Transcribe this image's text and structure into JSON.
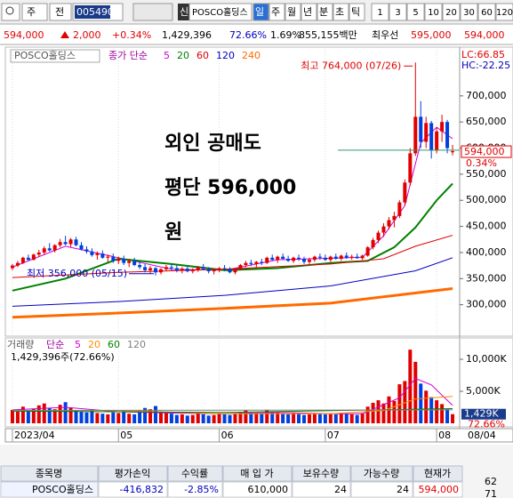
{
  "toolbar": {
    "market": "주",
    "mode": "전",
    "code": "005490",
    "flag": "신",
    "name": "POSCO홀딩스",
    "periods": [
      "일",
      "주",
      "월",
      "년",
      "분",
      "초",
      "틱"
    ],
    "intervals": [
      "1",
      "3",
      "5",
      "10",
      "20",
      "30",
      "60",
      "120"
    ]
  },
  "quote": {
    "price": "594,000",
    "change": "2,000",
    "change_pct": "+0.34%",
    "volume": "1,429,396",
    "volume_ratio": "72.66%",
    "turnover": "1.69%",
    "amount": "855,155백만",
    "best_label": "최우선",
    "ask": "595,000",
    "bid": "594,000"
  },
  "chart_data": {
    "type": "candlestick",
    "legend_name": "POSCO홀딩스",
    "legend_label": "종가 단순",
    "xlim": [
      -1,
      84
    ],
    "xticks": [
      {
        "value": 0,
        "label": "2023/04"
      },
      {
        "value": 20,
        "label": "05"
      },
      {
        "value": 39,
        "label": "06"
      },
      {
        "value": 59,
        "label": "07"
      },
      {
        "value": 80,
        "label": "08"
      }
    ],
    "last_date": "08/04",
    "ylim": [
      250000,
      790000
    ],
    "yticks": [
      {
        "value": 300000,
        "label": "300,000"
      },
      {
        "value": 350000,
        "label": "350,000"
      },
      {
        "value": 400000,
        "label": "400,000"
      },
      {
        "value": 450000,
        "label": "450,000"
      },
      {
        "value": 500000,
        "label": "500,000"
      },
      {
        "value": 550000,
        "label": "550,000"
      },
      {
        "value": 600000,
        "label": "600,000"
      },
      {
        "value": 650000,
        "label": "650,000"
      },
      {
        "value": 700000,
        "label": "700,000"
      }
    ],
    "up_color": "#e00000",
    "down_color": "#0040e0",
    "ohlc": [
      [
        370000,
        378000,
        366000,
        375000
      ],
      [
        375000,
        384000,
        372000,
        380000
      ],
      [
        380000,
        392000,
        378000,
        390000
      ],
      [
        390000,
        396000,
        384000,
        386000
      ],
      [
        386000,
        398000,
        385000,
        396000
      ],
      [
        396000,
        405000,
        392000,
        400000
      ],
      [
        400000,
        412000,
        396000,
        408000
      ],
      [
        408000,
        418000,
        402000,
        404000
      ],
      [
        404000,
        416000,
        400000,
        414000
      ],
      [
        414000,
        426000,
        410000,
        420000
      ],
      [
        420000,
        432000,
        414000,
        416000
      ],
      [
        416000,
        428000,
        410000,
        425000
      ],
      [
        425000,
        430000,
        412000,
        414000
      ],
      [
        414000,
        420000,
        404000,
        406000
      ],
      [
        406000,
        412000,
        398000,
        402000
      ],
      [
        402000,
        408000,
        392000,
        395000
      ],
      [
        395000,
        402000,
        386000,
        398000
      ],
      [
        398000,
        404000,
        388000,
        390000
      ],
      [
        390000,
        396000,
        382000,
        392000
      ],
      [
        392000,
        398000,
        380000,
        384000
      ],
      [
        384000,
        392000,
        378000,
        388000
      ],
      [
        388000,
        394000,
        376000,
        380000
      ],
      [
        380000,
        388000,
        372000,
        384000
      ],
      [
        384000,
        390000,
        374000,
        376000
      ],
      [
        376000,
        384000,
        368000,
        372000
      ],
      [
        372000,
        378000,
        362000,
        366000
      ],
      [
        366000,
        374000,
        360000,
        370000
      ],
      [
        370000,
        372000,
        356000,
        362000
      ],
      [
        362000,
        370000,
        358000,
        368000
      ],
      [
        368000,
        376000,
        364000,
        372000
      ],
      [
        372000,
        378000,
        366000,
        370000
      ],
      [
        370000,
        376000,
        362000,
        366000
      ],
      [
        366000,
        372000,
        360000,
        369000
      ],
      [
        369000,
        374000,
        362000,
        364000
      ],
      [
        364000,
        370000,
        360000,
        367000
      ],
      [
        367000,
        374000,
        363000,
        372000
      ],
      [
        372000,
        378000,
        366000,
        368000
      ],
      [
        368000,
        372000,
        360000,
        364000
      ],
      [
        364000,
        370000,
        358000,
        366000
      ],
      [
        366000,
        372000,
        362000,
        370000
      ],
      [
        370000,
        376000,
        364000,
        368000
      ],
      [
        368000,
        372000,
        360000,
        362000
      ],
      [
        362000,
        370000,
        358000,
        368000
      ],
      [
        368000,
        378000,
        366000,
        376000
      ],
      [
        376000,
        384000,
        372000,
        380000
      ],
      [
        380000,
        386000,
        374000,
        378000
      ],
      [
        378000,
        384000,
        372000,
        382000
      ],
      [
        382000,
        388000,
        376000,
        380000
      ],
      [
        380000,
        392000,
        378000,
        390000
      ],
      [
        390000,
        396000,
        384000,
        386000
      ],
      [
        386000,
        394000,
        380000,
        392000
      ],
      [
        392000,
        398000,
        386000,
        388000
      ],
      [
        388000,
        394000,
        382000,
        384000
      ],
      [
        384000,
        392000,
        380000,
        390000
      ],
      [
        390000,
        396000,
        384000,
        388000
      ],
      [
        388000,
        392000,
        378000,
        382000
      ],
      [
        382000,
        390000,
        378000,
        386000
      ],
      [
        386000,
        394000,
        382000,
        392000
      ],
      [
        392000,
        398000,
        386000,
        390000
      ],
      [
        390000,
        396000,
        384000,
        386000
      ],
      [
        386000,
        394000,
        382000,
        392000
      ],
      [
        392000,
        398000,
        386000,
        388000
      ],
      [
        388000,
        396000,
        384000,
        394000
      ],
      [
        394000,
        400000,
        388000,
        390000
      ],
      [
        390000,
        396000,
        386000,
        392000
      ],
      [
        392000,
        398000,
        388000,
        389000
      ],
      [
        389000,
        396000,
        386000,
        394000
      ],
      [
        394000,
        412000,
        392000,
        410000
      ],
      [
        410000,
        428000,
        406000,
        424000
      ],
      [
        424000,
        442000,
        418000,
        438000
      ],
      [
        438000,
        456000,
        430000,
        450000
      ],
      [
        450000,
        468000,
        444000,
        462000
      ],
      [
        462000,
        478000,
        448000,
        470000
      ],
      [
        470000,
        500000,
        466000,
        496000
      ],
      [
        496000,
        540000,
        490000,
        534000
      ],
      [
        534000,
        600000,
        528000,
        590000
      ],
      [
        590000,
        764000,
        585000,
        660000
      ],
      [
        660000,
        690000,
        600000,
        612000
      ],
      [
        612000,
        660000,
        600000,
        648000
      ],
      [
        648000,
        652000,
        580000,
        596000
      ],
      [
        596000,
        640000,
        590000,
        632000
      ],
      [
        632000,
        664000,
        612000,
        650000
      ],
      [
        650000,
        654000,
        590000,
        600000
      ],
      [
        592000,
        606000,
        586000,
        594000
      ]
    ],
    "ma_series": [
      {
        "name": "5",
        "color": "#d000d0",
        "width": 1,
        "x": [
          0,
          10,
          20,
          30,
          40,
          50,
          60,
          66,
          70,
          74,
          77,
          80,
          83
        ],
        "values": [
          372000,
          412000,
          390000,
          368000,
          366000,
          386000,
          389000,
          391000,
          432000,
          490000,
          610000,
          640000,
          618000
        ]
      },
      {
        "name": "20",
        "color": "#008000",
        "width": 2,
        "x": [
          0,
          10,
          20,
          30,
          40,
          50,
          60,
          67,
          72,
          76,
          80,
          83
        ],
        "values": [
          327000,
          350000,
          388000,
          378000,
          366000,
          370000,
          380000,
          384000,
          410000,
          448000,
          500000,
          532000
        ]
      },
      {
        "name": "60",
        "color": "#e00000",
        "width": 1,
        "x": [
          0,
          20,
          40,
          60,
          70,
          76,
          83
        ],
        "values": [
          352000,
          362000,
          368000,
          378000,
          388000,
          412000,
          433000
        ]
      },
      {
        "name": "120",
        "color": "#0000c0",
        "width": 1,
        "x": [
          0,
          20,
          40,
          60,
          76,
          83
        ],
        "values": [
          297000,
          306000,
          318000,
          336000,
          365000,
          390000
        ]
      },
      {
        "name": "240",
        "color": "#ff6a00",
        "width": 3,
        "x": [
          0,
          20,
          40,
          60,
          83
        ],
        "values": [
          276000,
          284000,
          293000,
          303000,
          331000
        ]
      }
    ],
    "indicators": [
      {
        "label": "LC:66.85",
        "color": "#e00000"
      },
      {
        "label": "HC:-22.25",
        "color": "#0000c0"
      }
    ],
    "price_marker": {
      "value": 594000,
      "label": "594,000"
    },
    "change_label": "0.34%",
    "high_label": "최고 764,000 (07/26)",
    "low_label": "최저 356,000 (05/15)",
    "overlay": [
      "외인 공매도",
      "평단 596,000",
      "원"
    ],
    "short_avg": 596000,
    "volume": {
      "legend_name": "거래량",
      "legend_label": "단순",
      "info": "1,429,396주(72.66%)",
      "ylim": [
        0,
        12500000
      ],
      "yticks": [
        {
          "value": 5000000,
          "label": "5,000K"
        },
        {
          "value": 10000000,
          "label": "10,000K"
        }
      ],
      "values": [
        2100000,
        1800000,
        2600000,
        1900000,
        2300000,
        2800000,
        3100000,
        2400000,
        2200000,
        2900000,
        3300000,
        2500000,
        2000000,
        1800000,
        1700000,
        2100000,
        1600000,
        1500000,
        1400000,
        1700000,
        1600000,
        1900000,
        1500000,
        1400000,
        2000000,
        2400000,
        2200000,
        2700000,
        1800000,
        1600000,
        1500000,
        1300000,
        1400000,
        1200000,
        1300000,
        1500000,
        1400000,
        1200000,
        1300000,
        1500000,
        1400000,
        1300000,
        1500000,
        1800000,
        2000000,
        1700000,
        1600000,
        1500000,
        2100000,
        1800000,
        1700000,
        1500000,
        1400000,
        1600000,
        1500000,
        1300000,
        1400000,
        1600000,
        1500000,
        1400000,
        1500000,
        1400000,
        1600000,
        1500000,
        1400000,
        1300000,
        1600000,
        2600000,
        3200000,
        3600000,
        3100000,
        4200000,
        3500000,
        6100000,
        6600000,
        11500000,
        9600000,
        6200000,
        5100000,
        4100000,
        3600000,
        3000000,
        2200000,
        1429396
      ],
      "current": {
        "value": 1429396,
        "label": "1,429K"
      },
      "ratio_label": "72.66%",
      "ma_series": [
        {
          "name": "5",
          "color": "#d000d0",
          "x": [
            0,
            10,
            20,
            30,
            40,
            50,
            60,
            66,
            70,
            73,
            76,
            79,
            83
          ],
          "values": [
            2100000,
            2500000,
            1800000,
            1600000,
            1500000,
            1700000,
            1500000,
            1500000,
            2900000,
            4000000,
            7000000,
            6000000,
            2800000
          ]
        },
        {
          "name": "20",
          "color": "#ff8c00",
          "x": [
            0,
            20,
            40,
            60,
            70,
            76,
            83
          ],
          "values": [
            2000000,
            2000000,
            1500000,
            1500000,
            2000000,
            3800000,
            4200000
          ]
        },
        {
          "name": "60",
          "color": "#008000",
          "x": [
            0,
            40,
            83
          ],
          "values": [
            1900000,
            1700000,
            2300000
          ]
        },
        {
          "name": "120",
          "color": "#808080",
          "x": [
            0,
            83
          ],
          "values": [
            2000000,
            2100000
          ]
        }
      ]
    }
  },
  "holdings": {
    "headers": [
      "종목명",
      "평가손익",
      "수익률",
      "매 입 가",
      "보유수량",
      "가능수량",
      "현재가"
    ],
    "rows": [
      [
        "POSCO홀딩스",
        "-416,832",
        "-2.85%",
        "610,000",
        "24",
        "24",
        "594,000"
      ]
    ]
  },
  "side": [
    "62",
    "71"
  ]
}
